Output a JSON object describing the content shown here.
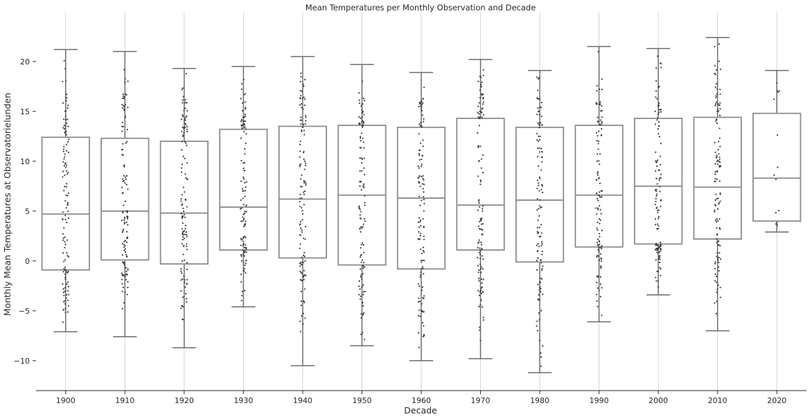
{
  "chart_data": {
    "type": "box",
    "title": "Mean Temperatures per Monthly Observation and Decade",
    "xlabel": "Decade",
    "ylabel": "Monthly Mean Temperatures at Observatorielunden",
    "ylim": [
      -13,
      24.5
    ],
    "yticks": [
      -10,
      -5,
      0,
      5,
      10,
      15,
      20
    ],
    "grid": "vertical",
    "colors": {
      "box": "#8c8c8c",
      "whisker": "#6b6b6b",
      "dot": "#3c3c3c",
      "grid": "#c8c8c8",
      "axis": "#262626"
    },
    "categories": [
      "1900",
      "1910",
      "1920",
      "1930",
      "1940",
      "1950",
      "1960",
      "1970",
      "1980",
      "1990",
      "2000",
      "2010",
      "2020"
    ],
    "boxes": [
      {
        "whislo": -7.1,
        "q1": -0.9,
        "med": 4.7,
        "q3": 12.4,
        "whishi": 21.2
      },
      {
        "whislo": -7.6,
        "q1": 0.1,
        "med": 5.0,
        "q3": 12.3,
        "whishi": 21.0
      },
      {
        "whislo": -8.7,
        "q1": -0.3,
        "med": 4.8,
        "q3": 12.0,
        "whishi": 19.3
      },
      {
        "whislo": -4.6,
        "q1": 1.1,
        "med": 5.4,
        "q3": 13.2,
        "whishi": 19.5
      },
      {
        "whislo": -10.5,
        "q1": 0.3,
        "med": 6.2,
        "q3": 13.5,
        "whishi": 20.5
      },
      {
        "whislo": -8.5,
        "q1": -0.4,
        "med": 6.6,
        "q3": 13.6,
        "whishi": 19.7
      },
      {
        "whislo": -10.0,
        "q1": -0.8,
        "med": 6.3,
        "q3": 13.4,
        "whishi": 18.9
      },
      {
        "whislo": -9.8,
        "q1": 1.1,
        "med": 5.6,
        "q3": 14.3,
        "whishi": 20.2
      },
      {
        "whislo": -11.2,
        "q1": -0.1,
        "med": 6.1,
        "q3": 13.4,
        "whishi": 19.1
      },
      {
        "whislo": -6.1,
        "q1": 1.4,
        "med": 6.6,
        "q3": 13.6,
        "whishi": 21.5
      },
      {
        "whislo": -3.4,
        "q1": 1.7,
        "med": 7.5,
        "q3": 14.3,
        "whishi": 21.3
      },
      {
        "whislo": -7.0,
        "q1": 2.2,
        "med": 7.4,
        "q3": 14.4,
        "whishi": 22.4
      },
      {
        "whislo": 2.9,
        "q1": 4.0,
        "med": 8.3,
        "q3": 14.8,
        "whishi": 19.1
      }
    ]
  }
}
